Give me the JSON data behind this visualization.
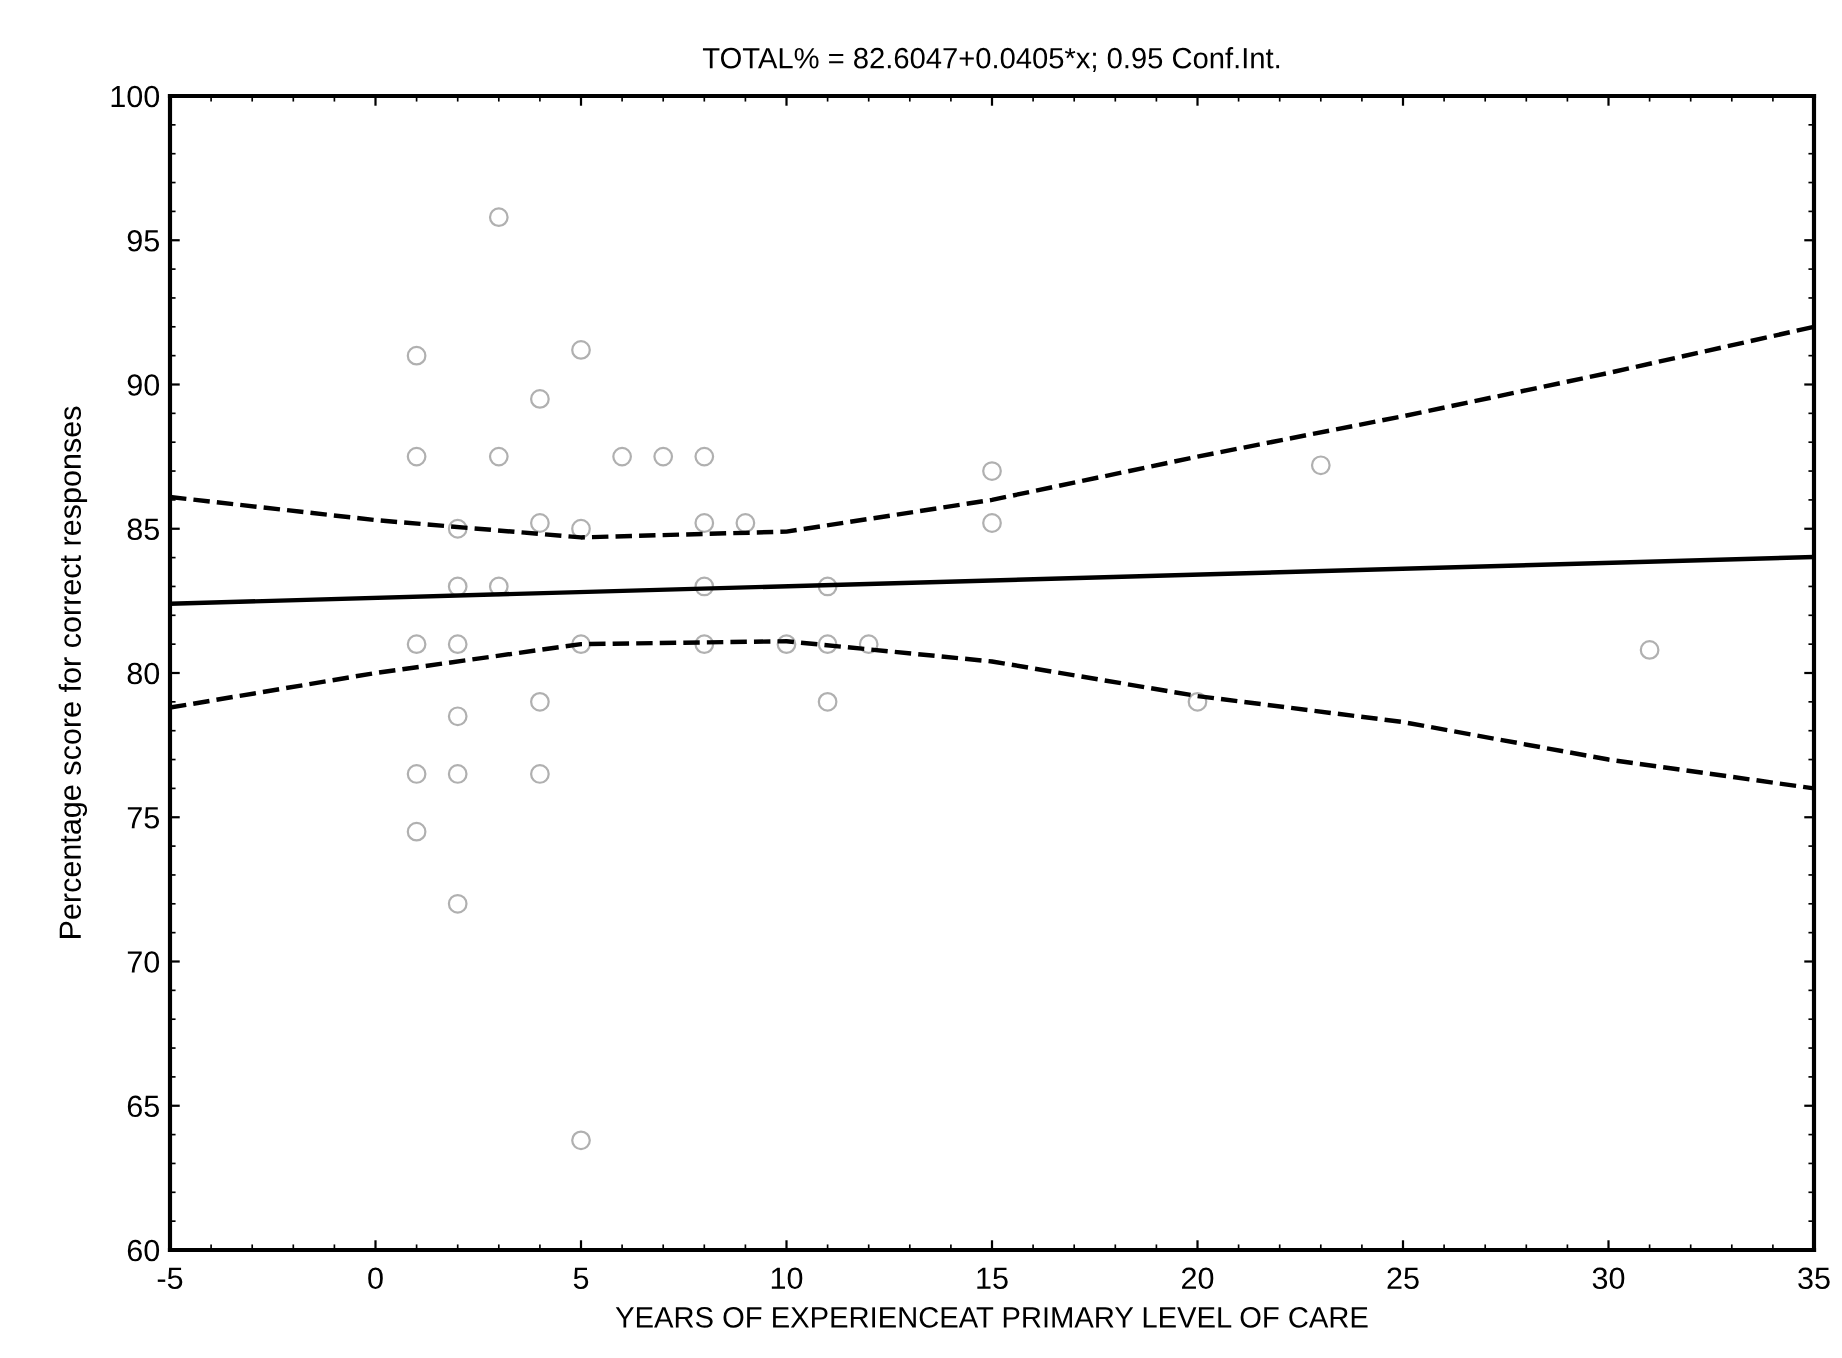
{
  "chart_data": {
    "type": "scatter",
    "title": "TOTAL% = 82.6047+0.0405*x; 0.95 Conf.Int.",
    "xlabel": "YEARS OF EXPERIENCEAT PRIMARY LEVEL OF CARE",
    "ylabel": "Percentage score for correct responses",
    "xlim": [
      -5,
      35
    ],
    "xticks": [
      -5,
      0,
      5,
      10,
      15,
      20,
      25,
      30,
      35
    ],
    "ylim": [
      60,
      100
    ],
    "yticks": [
      60,
      65,
      70,
      75,
      80,
      85,
      90,
      95,
      100
    ],
    "grid": false,
    "series": [
      {
        "marker": "circle",
        "color": "#b0b0b0",
        "x": [
          1,
          1,
          1,
          1,
          1,
          2,
          2,
          2,
          2,
          2,
          2,
          3,
          3,
          3,
          4,
          4,
          4,
          4,
          5,
          5,
          5,
          5,
          6,
          7,
          8,
          8,
          8,
          8,
          9,
          10,
          11,
          11,
          11,
          12,
          15,
          15,
          20,
          23,
          31
        ],
        "values": [
          91,
          87.5,
          81,
          76.5,
          74.5,
          85,
          83,
          81,
          78.5,
          76.5,
          72,
          95.8,
          87.5,
          83,
          89.5,
          85.2,
          79,
          76.5,
          91.2,
          85,
          81,
          63.8,
          87.5,
          87.5,
          87.5,
          85.2,
          83,
          81,
          85.2,
          81,
          83,
          81,
          79,
          81,
          87,
          85.2,
          79,
          87.2,
          80.8
        ]
      },
      {
        "type": "line",
        "color": "#000000",
        "line_style": "solid",
        "x": [
          -5,
          35
        ],
        "values": [
          82.4,
          84.02
        ]
      },
      {
        "type": "line",
        "color": "#000000",
        "line_style": "dashed",
        "x": [
          -5,
          0,
          5,
          10,
          15,
          20,
          25,
          30,
          35
        ],
        "values": [
          78.8,
          80.0,
          81.0,
          81.1,
          80.4,
          79.2,
          78.3,
          77.0,
          76.0
        ]
      },
      {
        "type": "line",
        "color": "#000000",
        "line_style": "dashed",
        "x": [
          -5,
          0,
          5,
          10,
          15,
          20,
          25,
          30,
          35
        ],
        "values": [
          86.1,
          85.3,
          84.7,
          84.9,
          86.0,
          87.5,
          88.9,
          90.4,
          92.0
        ]
      }
    ]
  }
}
